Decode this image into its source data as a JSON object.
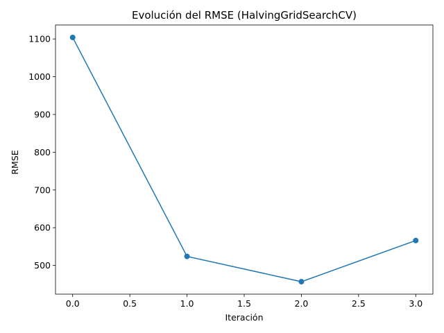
{
  "chart_data": {
    "type": "line",
    "title": "Evolución del RMSE (HalvingGridSearchCV)",
    "xlabel": "Iteración",
    "ylabel": "RMSE",
    "x": [
      0,
      1,
      2,
      3
    ],
    "series": [
      {
        "values": [
          1104,
          524,
          457,
          566
        ],
        "color": "#1f77b4",
        "marker": "circle"
      }
    ],
    "xlim": [
      -0.15,
      3.15
    ],
    "ylim": [
      424,
      1137
    ],
    "xticks": [
      0.0,
      0.5,
      1.0,
      1.5,
      2.0,
      2.5,
      3.0
    ],
    "xtick_labels": [
      "0.0",
      "0.5",
      "1.0",
      "1.5",
      "2.0",
      "2.5",
      "3.0"
    ],
    "yticks": [
      500,
      600,
      700,
      800,
      900,
      1000,
      1100
    ],
    "ytick_labels": [
      "500",
      "600",
      "700",
      "800",
      "900",
      "1000",
      "1100"
    ],
    "grid": false,
    "legend": "none"
  }
}
